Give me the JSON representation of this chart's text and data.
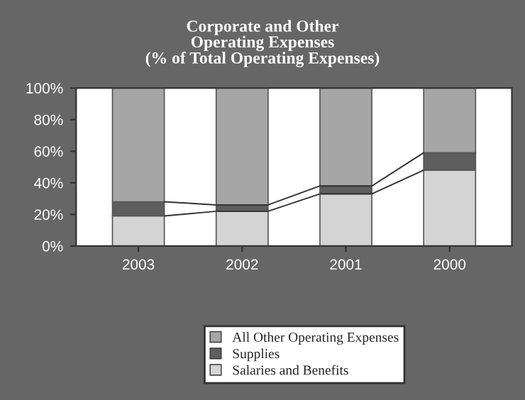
{
  "chart_data": {
    "type": "bar",
    "stacked": true,
    "title": "Corporate and Other\nOperating Expenses\n(% of Total Operating Expenses)",
    "categories": [
      "2003",
      "2002",
      "2001",
      "2000"
    ],
    "series": [
      {
        "name": "Salaries and Benefits",
        "color": "#d4d4d4",
        "values": [
          19,
          22,
          33,
          48
        ]
      },
      {
        "name": "Supplies",
        "color": "#5e5e5e",
        "values": [
          9,
          4,
          5,
          11
        ]
      },
      {
        "name": "All Other Operating Expenses",
        "color": "#a6a6a6",
        "values": [
          72,
          74,
          62,
          41
        ]
      }
    ],
    "ylim": [
      0,
      100
    ],
    "yticks": [
      {
        "value": 0,
        "label": "0%"
      },
      {
        "value": 20,
        "label": "20%"
      },
      {
        "value": 40,
        "label": "40%"
      },
      {
        "value": 60,
        "label": "60%"
      },
      {
        "value": 80,
        "label": "80%"
      },
      {
        "value": 100,
        "label": "100%"
      }
    ],
    "grid": false,
    "legend": "bottom"
  }
}
